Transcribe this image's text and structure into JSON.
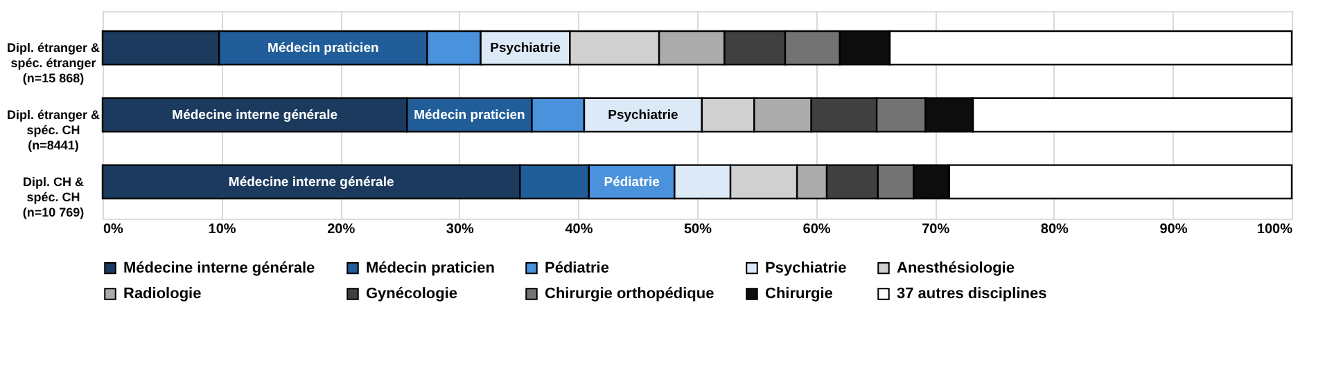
{
  "chart_data": {
    "type": "bar",
    "orientation": "horizontal",
    "stacked": true,
    "grid": "x",
    "legend": "bottom",
    "categories": [
      "Dipl. étranger &\nspéc. étranger\n(n=15 868)",
      "Dipl. étranger &\nspéc. CH\n(n=8441)",
      "Dipl. CH &\nspéc. CH\n(n=10 769)"
    ],
    "xlim": [
      0,
      100
    ],
    "xticks": [
      {
        "value": 0,
        "label": "0%"
      },
      {
        "value": 10,
        "label": "10%"
      },
      {
        "value": 20,
        "label": "20%"
      },
      {
        "value": 30,
        "label": "30%"
      },
      {
        "value": 40,
        "label": "40%"
      },
      {
        "value": 50,
        "label": "50%"
      },
      {
        "value": 60,
        "label": "60%"
      },
      {
        "value": 70,
        "label": "70%"
      },
      {
        "value": 80,
        "label": "80%"
      },
      {
        "value": 90,
        "label": "90%"
      },
      {
        "value": 100,
        "label": "100%"
      }
    ],
    "series": [
      {
        "name": "Médecine interne générale",
        "color": "#1b3a5e",
        "values": [
          9.8,
          25.6,
          35.1
        ],
        "value_labels": [
          null,
          "Médecine interne générale",
          "Médecine interne générale"
        ]
      },
      {
        "name": "Médecin praticien",
        "color": "#215d98",
        "values": [
          17.5,
          10.5,
          5.8
        ],
        "value_labels": [
          "Médecin praticien",
          "Médecin praticien",
          null
        ]
      },
      {
        "name": "Pédiatrie",
        "color": "#4a92dc",
        "values": [
          4.5,
          4.4,
          7.2
        ],
        "value_labels": [
          null,
          null,
          "Pédiatrie"
        ]
      },
      {
        "name": "Psychiatrie",
        "color": "#dce9f7",
        "values": [
          7.5,
          9.9,
          4.7
        ],
        "value_labels": [
          "Psychiatrie",
          "Psychiatrie",
          null
        ]
      },
      {
        "name": "Anesthésiologie",
        "color": "#d0d0d0",
        "values": [
          7.5,
          4.4,
          5.6
        ]
      },
      {
        "name": "Radiologie",
        "color": "#ababab",
        "values": [
          5.5,
          4.8,
          2.5
        ]
      },
      {
        "name": "Gynécologie",
        "color": "#404040",
        "values": [
          5.1,
          5.5,
          4.3
        ]
      },
      {
        "name": "Chirurgie orthopédique",
        "color": "#737373",
        "values": [
          4.6,
          4.1,
          3.0
        ]
      },
      {
        "name": "Chirurgie",
        "color": "#0d0d0d",
        "values": [
          4.2,
          4.0,
          3.0
        ]
      },
      {
        "name": "37 autres disciplines",
        "color": "#ffffff",
        "values": [
          33.8,
          26.8,
          28.8
        ]
      }
    ]
  }
}
